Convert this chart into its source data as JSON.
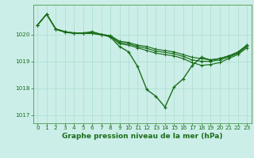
{
  "title": "Graphe pression niveau de la mer (hPa)",
  "bg_color": "#cceee8",
  "grid_color": "#aaddcc",
  "line_color": "#1a6e1a",
  "xlim": [
    -0.5,
    23.5
  ],
  "ylim": [
    1016.7,
    1021.1
  ],
  "yticks": [
    1017,
    1018,
    1019,
    1020
  ],
  "xticks": [
    0,
    1,
    2,
    3,
    4,
    5,
    6,
    7,
    8,
    9,
    10,
    11,
    12,
    13,
    14,
    15,
    16,
    17,
    18,
    19,
    20,
    21,
    22,
    23
  ],
  "lines": [
    {
      "y": [
        1020.35,
        1020.75,
        1020.2,
        1020.1,
        1020.05,
        1020.05,
        1020.1,
        1020.0,
        1019.9,
        1019.55,
        1019.35,
        1018.8,
        1017.95,
        1017.7,
        1017.3,
        1018.05,
        1018.35,
        1018.85,
        1019.15,
        1019.05,
        1019.1,
        1019.2,
        1019.3,
        1019.6
      ],
      "marker": true,
      "lw": 1.0
    },
    {
      "y": [
        1020.35,
        1020.75,
        1020.2,
        1020.1,
        1020.05,
        1020.05,
        1020.05,
        1020.0,
        1019.95,
        1019.75,
        1019.7,
        1019.6,
        1019.55,
        1019.45,
        1019.4,
        1019.35,
        1019.25,
        1019.15,
        1019.1,
        1019.05,
        1019.1,
        1019.2,
        1019.35,
        1019.6
      ],
      "marker": false,
      "lw": 0.85
    },
    {
      "y": [
        1020.35,
        1020.75,
        1020.2,
        1020.1,
        1020.05,
        1020.05,
        1020.05,
        1020.0,
        1019.95,
        1019.7,
        1019.65,
        1019.55,
        1019.48,
        1019.38,
        1019.33,
        1019.28,
        1019.18,
        1019.05,
        1019.0,
        1019.0,
        1019.05,
        1019.15,
        1019.3,
        1019.55
      ],
      "marker": false,
      "lw": 0.85
    },
    {
      "y": [
        1020.35,
        1020.75,
        1020.18,
        1020.08,
        1020.03,
        1020.03,
        1020.03,
        1019.98,
        1019.93,
        1019.65,
        1019.6,
        1019.5,
        1019.4,
        1019.3,
        1019.25,
        1019.2,
        1019.1,
        1018.95,
        1018.85,
        1018.88,
        1018.95,
        1019.1,
        1019.25,
        1019.5
      ],
      "marker": false,
      "lw": 0.85
    }
  ],
  "title_fontsize": 6.5,
  "tick_fontsize": 5.2,
  "tick_color": "#1a6e1a",
  "spine_color": "#4a9a4a"
}
